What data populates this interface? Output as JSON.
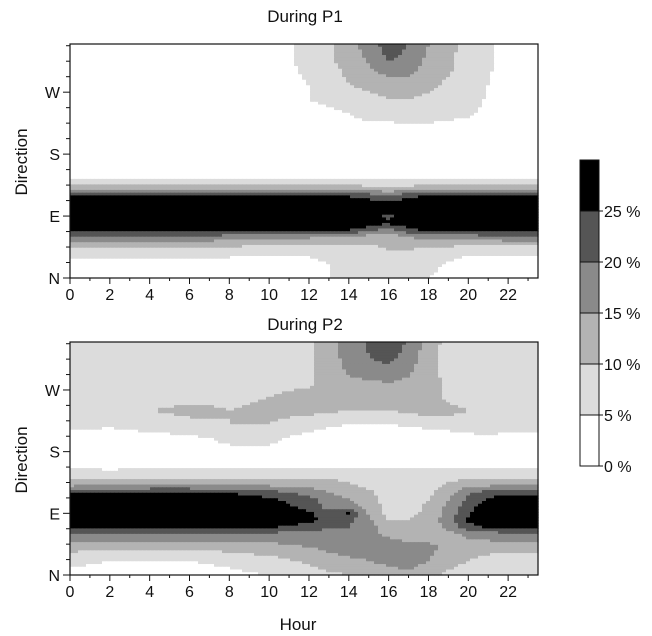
{
  "chart_data": [
    {
      "type": "heatmap",
      "title": "During P1",
      "xlabel": "",
      "ylabel": "Direction",
      "x_ticks": [
        "0",
        "2",
        "4",
        "6",
        "8",
        "10",
        "12",
        "14",
        "16",
        "18",
        "20",
        "22"
      ],
      "y_ticks": [
        "N",
        "E",
        "S",
        "W"
      ],
      "xlim": [
        0,
        23.5
      ],
      "x_unit": "hour",
      "y_unit": "degrees (N=0, E=90, S=180, W=270)",
      "ylim": [
        0,
        340
      ],
      "levels": [
        0,
        5,
        10,
        15,
        20,
        25
      ],
      "x": [
        0,
        2,
        4,
        6,
        8,
        10,
        12,
        14,
        15,
        16,
        17,
        18,
        20,
        22,
        23.5
      ],
      "y": [
        0,
        20,
        40,
        60,
        70,
        80,
        90,
        100,
        110,
        120,
        130,
        140,
        150,
        160,
        180,
        200,
        220,
        240,
        260,
        280,
        300,
        320,
        340
      ],
      "z": [
        [
          2,
          2,
          2,
          2,
          2,
          2,
          4,
          6,
          7,
          7,
          7,
          5,
          3,
          2,
          2
        ],
        [
          3,
          3,
          3,
          3,
          3,
          3,
          4,
          6,
          7,
          8,
          8,
          6,
          3,
          3,
          3
        ],
        [
          7,
          7,
          7,
          7,
          7,
          6,
          6,
          7,
          8,
          10,
          10,
          8,
          6,
          6,
          6
        ],
        [
          20,
          20,
          19,
          19,
          18,
          17,
          16,
          15,
          13,
          12,
          15,
          17,
          18,
          19,
          19
        ],
        [
          28,
          28,
          28,
          28,
          27,
          27,
          26,
          25,
          22,
          18,
          24,
          26,
          27,
          28,
          28
        ],
        [
          32,
          32,
          32,
          32,
          32,
          32,
          31,
          30,
          28,
          26,
          29,
          30,
          31,
          32,
          32
        ],
        [
          33,
          33,
          33,
          33,
          33,
          33,
          32,
          31,
          27,
          24,
          28,
          31,
          33,
          33,
          33
        ],
        [
          32,
          32,
          32,
          32,
          32,
          32,
          31,
          30,
          28,
          27,
          29,
          30,
          31,
          32,
          32
        ],
        [
          30,
          30,
          30,
          31,
          31,
          30,
          30,
          29,
          27,
          26,
          28,
          29,
          30,
          30,
          30
        ],
        [
          25,
          25,
          25,
          26,
          26,
          25,
          25,
          24,
          22,
          20,
          23,
          25,
          25,
          25,
          25
        ],
        [
          14,
          14,
          14,
          14,
          14,
          14,
          14,
          13,
          12,
          11,
          12,
          14,
          14,
          14,
          14
        ],
        [
          7,
          7,
          7,
          7,
          7,
          7,
          7,
          7,
          6,
          6,
          6,
          7,
          7,
          7,
          7
        ],
        [
          3,
          3,
          3,
          3,
          3,
          3,
          3,
          3,
          3,
          3,
          3,
          3,
          3,
          3,
          3
        ],
        [
          1,
          1,
          1,
          1,
          1,
          1,
          1,
          1,
          1,
          1,
          1,
          1,
          1,
          1,
          1
        ],
        [
          1,
          1,
          1,
          1,
          1,
          1,
          1,
          1,
          1,
          1,
          1,
          1,
          1,
          1,
          1
        ],
        [
          1,
          1,
          1,
          1,
          1,
          1,
          1,
          1,
          1,
          1,
          1,
          1,
          1,
          1,
          1
        ],
        [
          1,
          1,
          1,
          1,
          1,
          1,
          2,
          3,
          4,
          4,
          4,
          4,
          3,
          1,
          1
        ],
        [
          1,
          1,
          1,
          1,
          1,
          1,
          3,
          5,
          7,
          7,
          8,
          8,
          6,
          1,
          1
        ],
        [
          1,
          1,
          1,
          1,
          1,
          2,
          5,
          8,
          9,
          10,
          10,
          9,
          7,
          2,
          1
        ],
        [
          1,
          1,
          1,
          1,
          1,
          2,
          5,
          10,
          11,
          12,
          13,
          11,
          7,
          3,
          1
        ],
        [
          1,
          1,
          1,
          1,
          1,
          2,
          6,
          11,
          14,
          17,
          16,
          13,
          8,
          3,
          1
        ],
        [
          1,
          1,
          1,
          1,
          1,
          2,
          7,
          12,
          16,
          21,
          19,
          14,
          8,
          3,
          1
        ],
        [
          1,
          1,
          1,
          1,
          1,
          2,
          7,
          12,
          18,
          22,
          20,
          15,
          8,
          3,
          1
        ]
      ]
    },
    {
      "type": "heatmap",
      "title": "During P2",
      "xlabel": "Hour",
      "ylabel": "Direction",
      "x_ticks": [
        "0",
        "2",
        "4",
        "6",
        "8",
        "10",
        "12",
        "14",
        "16",
        "18",
        "20",
        "22"
      ],
      "y_ticks": [
        "N",
        "E",
        "S",
        "W"
      ],
      "xlim": [
        0,
        23.5
      ],
      "x_unit": "hour",
      "y_unit": "degrees (N=0, E=90, S=180, W=270)",
      "ylim": [
        0,
        340
      ],
      "levels": [
        0,
        5,
        10,
        15,
        20,
        25
      ],
      "x": [
        0,
        2,
        4,
        6,
        8,
        10,
        12,
        13,
        14,
        15,
        16,
        17,
        18,
        19,
        20,
        21,
        22,
        23.5
      ],
      "y": [
        0,
        20,
        40,
        60,
        70,
        80,
        90,
        100,
        110,
        120,
        130,
        140,
        150,
        160,
        180,
        200,
        220,
        240,
        260,
        280,
        300,
        320,
        340
      ],
      "z": [
        [
          4,
          3,
          3,
          3,
          4,
          5,
          7,
          9,
          10,
          11,
          13,
          14,
          12,
          9,
          7,
          6,
          5,
          5
        ],
        [
          6,
          5,
          5,
          5,
          6,
          8,
          11,
          13,
          14,
          15,
          16,
          17,
          15,
          12,
          10,
          8,
          7,
          6
        ],
        [
          12,
          11,
          11,
          11,
          12,
          13,
          15,
          16,
          17,
          17,
          18,
          17,
          16,
          14,
          13,
          12,
          12,
          12
        ],
        [
          20,
          20,
          20,
          20,
          20,
          19,
          18,
          18,
          17,
          16,
          14,
          12,
          13,
          14,
          16,
          18,
          19,
          19
        ],
        [
          27,
          27,
          27,
          27,
          27,
          26,
          22,
          21,
          20,
          17,
          12,
          11,
          12,
          16,
          23,
          26,
          27,
          27
        ],
        [
          32,
          32,
          32,
          32,
          31,
          30,
          27,
          23,
          21,
          16,
          10,
          10,
          12,
          18,
          26,
          30,
          31,
          31
        ],
        [
          33,
          33,
          33,
          33,
          32,
          30,
          26,
          21,
          26,
          14,
          8,
          9,
          11,
          17,
          24,
          30,
          30,
          30
        ],
        [
          31,
          31,
          31,
          31,
          30,
          28,
          23,
          18,
          18,
          13,
          8,
          8,
          11,
          16,
          23,
          28,
          29,
          29
        ],
        [
          29,
          29,
          30,
          30,
          29,
          26,
          22,
          17,
          15,
          12,
          8,
          8,
          10,
          15,
          21,
          26,
          27,
          27
        ],
        [
          25,
          25,
          26,
          26,
          25,
          22,
          18,
          15,
          13,
          11,
          7,
          7,
          9,
          13,
          19,
          23,
          24,
          24
        ],
        [
          15,
          15,
          16,
          16,
          16,
          15,
          14,
          12,
          11,
          9,
          7,
          7,
          8,
          11,
          14,
          15,
          15,
          15
        ],
        [
          10,
          10,
          10,
          10,
          10,
          10,
          10,
          10,
          9,
          8,
          7,
          7,
          8,
          9,
          10,
          10,
          10,
          10
        ],
        [
          7,
          6,
          7,
          7,
          7,
          7,
          7,
          7,
          7,
          6,
          6,
          6,
          6,
          7,
          7,
          7,
          7,
          7
        ],
        [
          4,
          3,
          4,
          4,
          4,
          4,
          4,
          4,
          4,
          4,
          4,
          4,
          4,
          4,
          4,
          4,
          4,
          4
        ],
        [
          2,
          1,
          2,
          3,
          4,
          4,
          4,
          3,
          3,
          3,
          3,
          3,
          3,
          3,
          3,
          3,
          3,
          3
        ],
        [
          3,
          2,
          3,
          4,
          6,
          6,
          3,
          2,
          1,
          1,
          1,
          1,
          1,
          2,
          3,
          4,
          3,
          3
        ],
        [
          7,
          6,
          8,
          9,
          10,
          10,
          8,
          6,
          5,
          5,
          5,
          6,
          7,
          8,
          9,
          9,
          8,
          7
        ],
        [
          9,
          8,
          10,
          11,
          10,
          11,
          11,
          11,
          10,
          10,
          10,
          11,
          12,
          11,
          10,
          9,
          8,
          8
        ],
        [
          8,
          7,
          8,
          9,
          9,
          10,
          12,
          12,
          13,
          12,
          12,
          12,
          12,
          9,
          8,
          8,
          8,
          8
        ],
        [
          7,
          7,
          7,
          7,
          8,
          8,
          9,
          12,
          14,
          14,
          15,
          14,
          12,
          9,
          8,
          8,
          8,
          8
        ],
        [
          6,
          6,
          6,
          6,
          7,
          8,
          9,
          12,
          16,
          18,
          19,
          16,
          12,
          8,
          7,
          7,
          7,
          7
        ],
        [
          6,
          6,
          6,
          6,
          7,
          8,
          9,
          13,
          17,
          20,
          22,
          18,
          12,
          8,
          7,
          7,
          7,
          7
        ],
        [
          6,
          6,
          6,
          6,
          7,
          8,
          9,
          13,
          17,
          21,
          24,
          19,
          13,
          8,
          7,
          7,
          7,
          7
        ]
      ]
    }
  ],
  "colorbar": {
    "labels": [
      "0 %",
      "5 %",
      "10 %",
      "15 %",
      "20 %",
      "25 %"
    ],
    "colors": [
      "#ffffff",
      "#dcdcdc",
      "#b3b3b3",
      "#8a8a8a",
      "#555555",
      "#000000"
    ]
  }
}
